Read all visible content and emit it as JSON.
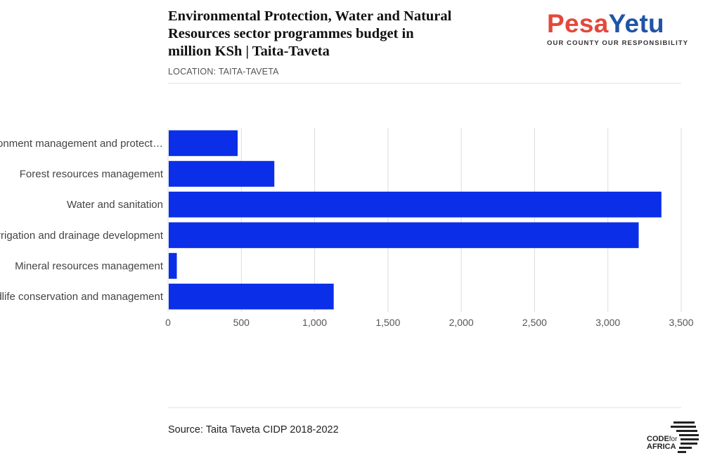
{
  "header": {
    "title_lines": [
      "Environmental Protection, Water and Natural",
      "Resources sector programmes budget in",
      "million KSh | Taita-Taveta"
    ],
    "subtitle": "LOCATION: TAITA-TAVETA"
  },
  "logo": {
    "part1": "Pesa",
    "part2": "Yetu",
    "tagline": "OUR COUNTY OUR RESPONSIBILITY",
    "colors": {
      "part1": "#e4483a",
      "part2": "#1f55a6"
    }
  },
  "footer": {
    "source": "Source: Taita Taveta CIDP 2018-2022",
    "credit_logo": {
      "line1": "CODE",
      "small": "for",
      "line2": "AFRICA"
    }
  },
  "chart_data": {
    "type": "bar",
    "orientation": "horizontal",
    "categories": [
      "Environment management and protect…",
      "Forest resources management",
      "Water and sanitation",
      "Irrigation and drainage development",
      "Mineral resources management",
      "Wildlife conservation and management"
    ],
    "values": [
      475,
      725,
      3365,
      3210,
      60,
      1130
    ],
    "xlim": [
      0,
      3500
    ],
    "xticks": [
      0,
      500,
      1000,
      1500,
      2000,
      2500,
      3000,
      3500
    ],
    "xtick_labels": [
      "0",
      "500",
      "1,000",
      "1,500",
      "2,000",
      "2,500",
      "3,000",
      "3,500"
    ],
    "grid": true,
    "bar_color": "#0b2ee8",
    "grid_color": "#dcdcdc"
  }
}
